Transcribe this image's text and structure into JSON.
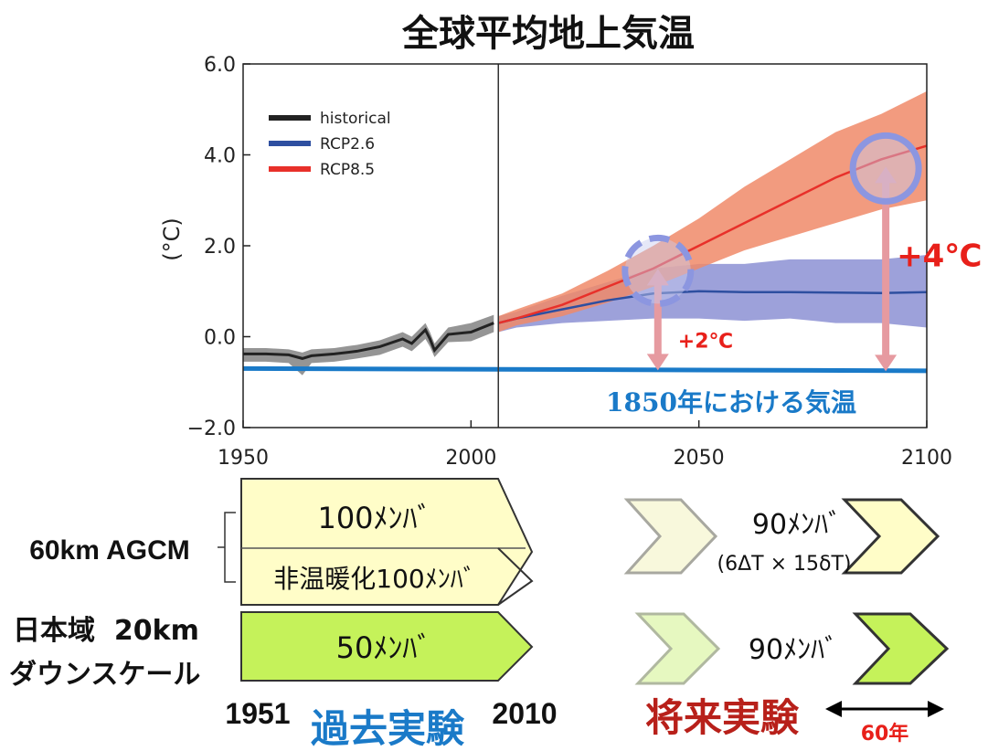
{
  "chart_data": {
    "type": "line",
    "title": "全球平均地上気温",
    "ylabel": "(°C)",
    "xlim": [
      1950,
      2100
    ],
    "ylim": [
      -2.0,
      6.0
    ],
    "xticks": [
      1950,
      2000,
      2050,
      2100
    ],
    "yticks": [
      6.0,
      4.0,
      2.0,
      0.0,
      -2.0
    ],
    "xtick_labels": [
      "1950",
      "2000",
      "2050",
      "2100"
    ],
    "ytick_labels": [
      "6.0",
      "4.0",
      "2.0",
      "0.0",
      "−2.0"
    ],
    "grid": false,
    "legend_position": "top-left",
    "colors": {
      "historical": "#222222",
      "historical_band": "#8a8a8a",
      "rcp26": "#2e4fa0",
      "rcp26_band": "#8c90d4",
      "rcp85": "#e8302a",
      "rcp85_band": "#f08a68",
      "baseline": "#1a7ac8",
      "arrow": "#e69aa0",
      "circle": "#8c96e0"
    },
    "divider_x": 2006,
    "series": [
      {
        "name": "historical",
        "x": [
          1950,
          1955,
          1960,
          1963,
          1965,
          1970,
          1975,
          1980,
          1985,
          1987,
          1990,
          1991,
          1992,
          1995,
          2000,
          2005
        ],
        "y": [
          -0.38,
          -0.38,
          -0.4,
          -0.48,
          -0.42,
          -0.38,
          -0.32,
          -0.22,
          -0.05,
          -0.15,
          0.15,
          -0.05,
          -0.3,
          0.05,
          0.1,
          0.3
        ],
        "band_upper": [
          -0.25,
          -0.25,
          -0.28,
          -0.35,
          -0.28,
          -0.25,
          -0.18,
          -0.08,
          0.1,
          0.0,
          0.3,
          0.1,
          -0.15,
          0.2,
          0.3,
          0.48
        ],
        "band_lower": [
          -0.55,
          -0.55,
          -0.58,
          -0.85,
          -0.58,
          -0.55,
          -0.48,
          -0.4,
          -0.22,
          -0.32,
          -0.05,
          -0.22,
          -0.45,
          -0.12,
          -0.1,
          0.1
        ]
      },
      {
        "name": "RCP2.6",
        "x": [
          2006,
          2010,
          2020,
          2030,
          2040,
          2050,
          2060,
          2070,
          2080,
          2090,
          2100
        ],
        "y": [
          0.3,
          0.4,
          0.6,
          0.8,
          0.95,
          1.0,
          0.98,
          0.98,
          0.97,
          0.96,
          0.98
        ],
        "band_upper": [
          0.45,
          0.55,
          0.9,
          1.2,
          1.5,
          1.6,
          1.6,
          1.7,
          1.7,
          1.7,
          1.8
        ],
        "band_lower": [
          0.1,
          0.2,
          0.3,
          0.35,
          0.4,
          0.4,
          0.35,
          0.4,
          0.3,
          0.3,
          0.2
        ]
      },
      {
        "name": "RCP8.5",
        "x": [
          2006,
          2010,
          2020,
          2030,
          2040,
          2050,
          2060,
          2070,
          2080,
          2090,
          2100
        ],
        "y": [
          0.3,
          0.4,
          0.7,
          1.1,
          1.5,
          2.0,
          2.5,
          3.0,
          3.5,
          3.9,
          4.2
        ],
        "band_upper": [
          0.45,
          0.6,
          0.95,
          1.45,
          2.0,
          2.6,
          3.3,
          3.9,
          4.5,
          4.9,
          5.4
        ],
        "band_lower": [
          0.1,
          0.25,
          0.45,
          0.75,
          1.1,
          1.5,
          1.9,
          2.2,
          2.5,
          2.8,
          3.0
        ]
      },
      {
        "name": "1850年における気温",
        "x": [
          1950,
          2100
        ],
        "y": [
          -0.7,
          -0.75
        ]
      }
    ],
    "annotations": {
      "arrow_2deg": {
        "x": 2041,
        "y_from": -0.7,
        "y_to": 1.45,
        "label": "+2℃"
      },
      "arrow_4deg": {
        "x": 2091,
        "y_from": -0.72,
        "y_to": 3.7,
        "label": "+4℃"
      },
      "circle_2deg": {
        "x": 2041,
        "y": 1.45,
        "style": "dashed"
      },
      "circle_4deg": {
        "x": 2091,
        "y": 3.7,
        "style": "solid"
      },
      "baseline_label": "1850年における気温"
    }
  },
  "experiments": {
    "agcm_label": "60km AGCM",
    "downscale_label_1": "日本域  20km",
    "downscale_label_2": "ダウンスケール",
    "past": {
      "member_100": "100ﾒﾝﾊﾞ",
      "member_nonwarming": "非温暖化100ﾒﾝﾊﾞ",
      "member_50": "50ﾒﾝﾊﾞ",
      "start_year": "1951",
      "end_year": "2010",
      "label": "過去実験",
      "color_agcm": "#fffdc8",
      "color_down": "#c5f25a"
    },
    "future": {
      "member_90_agcm": "90ﾒﾝﾊﾞ",
      "member_90_detail": "(6ΔT × 15δT)",
      "member_90_down": "90ﾒﾝﾊﾞ",
      "label": "将来実験",
      "span": "60年",
      "color_faded_agcm": "#f8f8dc",
      "color_faded_down": "#e6f8c0"
    }
  }
}
